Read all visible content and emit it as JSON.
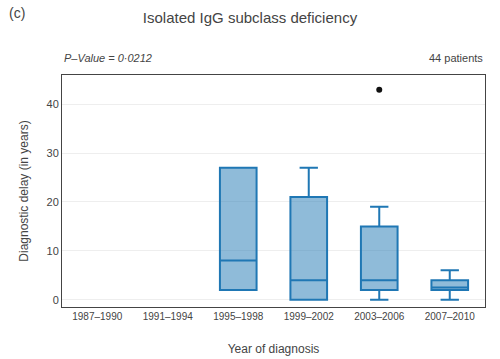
{
  "chart_data": {
    "type": "box",
    "title": "Isolated IgG subclass deficiency",
    "annotations": [
      "(c)",
      "P–Value = 0·0212",
      "44 patients"
    ],
    "xlabel": "Year of diagnosis",
    "ylabel": "Diagnostic delay (in years)",
    "categories": [
      "1987–1990",
      "1991–1994",
      "1995–1998",
      "1999–2002",
      "2003–2006",
      "2007–2010"
    ],
    "boxes": [
      {
        "category": "1995–1998",
        "whisker_low": 2,
        "q1": 2,
        "median": 8,
        "q3": 27,
        "whisker_high": 27,
        "outliers": []
      },
      {
        "category": "1999–2002",
        "whisker_low": 0,
        "q1": 0,
        "median": 4,
        "q3": 21,
        "whisker_high": 27,
        "outliers": []
      },
      {
        "category": "2003–2006",
        "whisker_low": 0,
        "q1": 2,
        "median": 4,
        "q3": 15,
        "whisker_high": 19,
        "outliers": [
          43
        ]
      },
      {
        "category": "2007–2010",
        "whisker_low": 0,
        "q1": 2,
        "median": 2.5,
        "q3": 4,
        "whisker_high": 6,
        "outliers": []
      }
    ],
    "ylim": [
      -1.5,
      46
    ],
    "yticks": [
      0,
      10,
      20,
      30,
      40
    ],
    "grid": true
  }
}
